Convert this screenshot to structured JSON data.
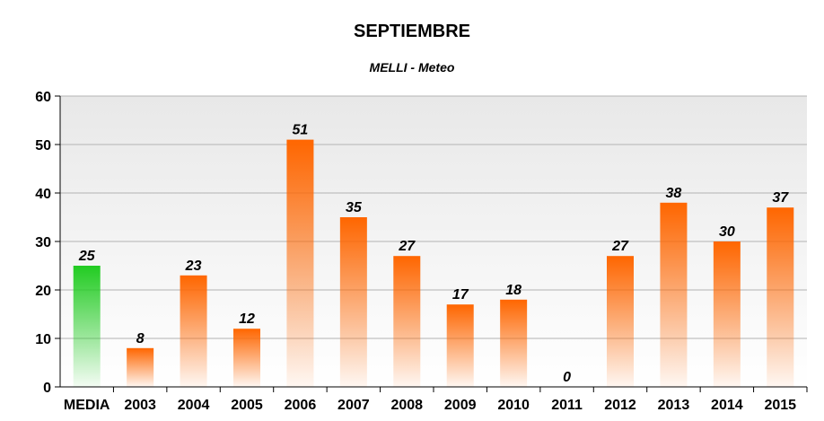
{
  "chart_data": {
    "type": "bar",
    "title": "SEPTIEMBRE",
    "subtitle": "MELLI  - Meteo",
    "xlabel": "",
    "ylabel": "",
    "categories": [
      "MEDIA",
      "2003",
      "2004",
      "2005",
      "2006",
      "2007",
      "2008",
      "2009",
      "2010",
      "2011",
      "2012",
      "2013",
      "2014",
      "2015"
    ],
    "values": [
      25,
      8,
      23,
      12,
      51,
      35,
      27,
      17,
      18,
      0,
      27,
      38,
      30,
      37
    ],
    "data_labels": [
      "25",
      "8",
      "23",
      "12",
      "51",
      "35",
      "27",
      "17",
      "18",
      "0",
      "27",
      "38",
      "30",
      "37"
    ],
    "ylim": [
      0,
      60
    ],
    "yticks": [
      0,
      10,
      20,
      30,
      40,
      50,
      60
    ],
    "ytick_labels": [
      "0",
      "10",
      "20",
      "30",
      "40",
      "50",
      "60"
    ],
    "grid": true,
    "legend": "none",
    "colors": {
      "average_bar": "#22cc22",
      "year_bar": "#ff6600",
      "plot_background_top": "#e8e8e8",
      "plot_background_bottom": "#ffffff",
      "gridline": "#b3b3b3",
      "axis": "#000000"
    }
  }
}
